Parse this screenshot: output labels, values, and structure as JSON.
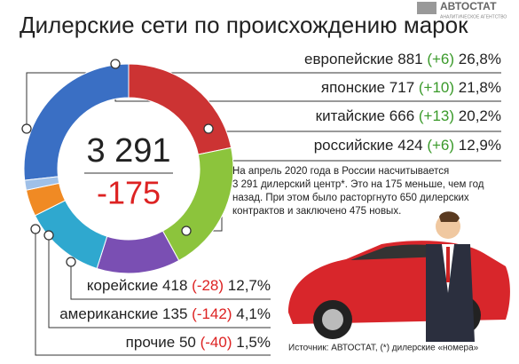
{
  "chart_data": {
    "type": "pie",
    "title": "Дилерские сети по происхождению марок",
    "categories": [
      "европейские",
      "японские",
      "китайские",
      "российские",
      "корейские",
      "американские",
      "прочие"
    ],
    "values": [
      881,
      717,
      666,
      424,
      418,
      135,
      50
    ],
    "changes": [
      6,
      10,
      13,
      6,
      -28,
      -142,
      -40
    ],
    "change_labels": [
      "(+6)",
      "(+10)",
      "(+13)",
      "(+6)",
      "(-28)",
      "(-142)",
      "(-40)"
    ],
    "shares": [
      26.8,
      21.8,
      20.2,
      12.9,
      12.7,
      4.1,
      1.5
    ],
    "share_labels": [
      "26,8%",
      "21,8%",
      "20,2%",
      "12,9%",
      "12,7%",
      "4,1%",
      "1,5%"
    ],
    "colors": [
      "#3a6fc4",
      "#cc3333",
      "#8cc43c",
      "#7a4fb3",
      "#2fa8cf",
      "#f08a24",
      "#9fc0e8"
    ],
    "total": 3291,
    "total_label": "3 291",
    "total_change": -175,
    "note": [
      "На апрель 2020 года в России насчитывается",
      "3 291 дилерский центр*. Это на 175 меньше, чем год",
      "назад. При этом было расторгнуто 650 дилерских",
      "контрактов и заключено 475 новых."
    ],
    "source": "Источник: АВТОСТАТ, (*) дилерские «номера»",
    "logo": "АВТОСТАТ",
    "logo_sub": "АНАЛИТИЧЕСКОЕ АГЕНТСТВО"
  }
}
